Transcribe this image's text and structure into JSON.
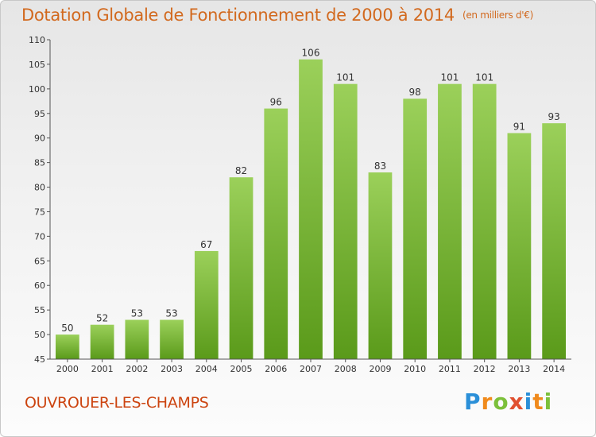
{
  "header": {
    "title": "Dotation Globale de Fonctionnement de 2000 à 2014",
    "unit": "(en milliers d'€)"
  },
  "footer": {
    "commune": "OUVROUER-LES-CHAMPS",
    "logo_letters": [
      "P",
      "r",
      "o",
      "x",
      "i",
      "t",
      "i"
    ]
  },
  "colors": {
    "bar_top": "#9bd05a",
    "bar_bottom": "#5a9a1a",
    "title": "#d2691e",
    "commune": "#cc4410"
  },
  "chart_data": {
    "type": "bar",
    "categories": [
      "2000",
      "2001",
      "2002",
      "2003",
      "2004",
      "2005",
      "2006",
      "2007",
      "2008",
      "2009",
      "2010",
      "2011",
      "2012",
      "2013",
      "2014"
    ],
    "values": [
      50,
      52,
      53,
      53,
      67,
      82,
      96,
      106,
      101,
      83,
      98,
      101,
      101,
      91,
      93
    ],
    "ylim": [
      45,
      110
    ],
    "yticks": [
      45,
      50,
      55,
      60,
      65,
      70,
      75,
      80,
      85,
      90,
      95,
      100,
      105,
      110
    ],
    "grid": false,
    "data_labels": true
  }
}
